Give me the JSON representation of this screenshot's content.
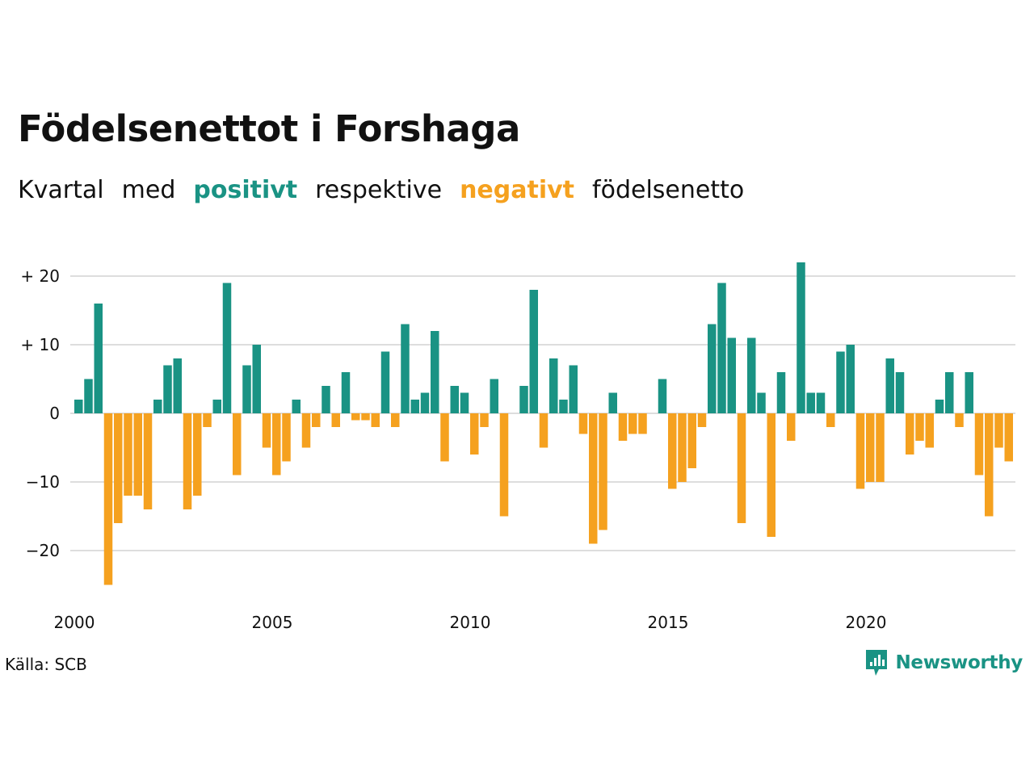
{
  "title": "Födelsenettot i Forshaga",
  "subtitle": {
    "part1": "Kvartal",
    "part2": "med",
    "positive_word": "positivt",
    "part3": "respektive",
    "negative_word": "negativt",
    "part4": "födelsenetto"
  },
  "source": "Källa: SCB",
  "logo_text": "Newsworthy",
  "colors": {
    "positive": "#1a9384",
    "negative": "#f5a11f",
    "grid": "#dddddd",
    "text": "#111111"
  },
  "chart_data": {
    "type": "bar",
    "start_year": 2000,
    "periods_per_year": 4,
    "values": [
      2,
      5,
      16,
      -25,
      -16,
      -12,
      -12,
      -14,
      2,
      7,
      8,
      -14,
      -12,
      -2,
      2,
      19,
      -9,
      7,
      10,
      -5,
      -9,
      -7,
      2,
      -5,
      -2,
      4,
      -2,
      6,
      -1,
      -1,
      -2,
      9,
      -2,
      13,
      2,
      3,
      12,
      -7,
      4,
      3,
      -6,
      -2,
      5,
      -15,
      0,
      4,
      18,
      -5,
      8,
      2,
      7,
      -3,
      -19,
      -17,
      3,
      -4,
      -3,
      -3,
      0,
      5,
      -11,
      -10,
      -8,
      -2,
      13,
      19,
      11,
      -16,
      11,
      3,
      -18,
      6,
      -4,
      22,
      3,
      3,
      -2,
      9,
      10,
      -11,
      -10,
      -10,
      8,
      6,
      -6,
      -4,
      -5,
      2,
      6,
      -2,
      6,
      -9,
      -15,
      -5,
      -7
    ],
    "ylim": [
      -26,
      23
    ],
    "yticks": [
      20,
      10,
      0,
      -10,
      -20
    ],
    "ytick_labels": [
      "+ 20",
      "+ 10",
      "0",
      "−10",
      "−20"
    ],
    "xtick_years": [
      2000,
      2005,
      2010,
      2015,
      2020
    ],
    "xtick_labels": [
      "2000",
      "2005",
      "2010",
      "2015",
      "2020"
    ],
    "grid": true,
    "legend": "none"
  }
}
